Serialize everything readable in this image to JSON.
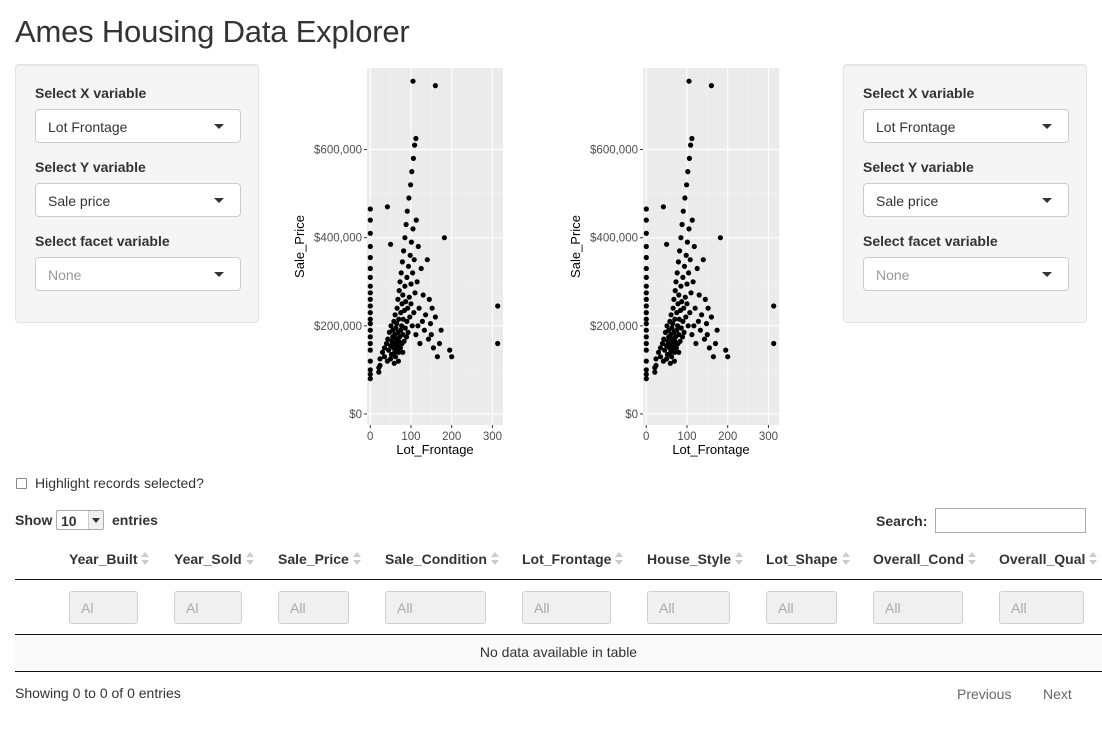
{
  "app": {
    "title": "Ames Housing Data Explorer"
  },
  "controls": [
    {
      "x_label": "Select X variable",
      "x_value": "Lot Frontage",
      "y_label": "Select Y variable",
      "y_value": "Sale price",
      "facet_label": "Select facet variable",
      "facet_value": "None"
    },
    {
      "x_label": "Select X variable",
      "x_value": "Lot Frontage",
      "y_label": "Select Y variable",
      "y_value": "Sale price",
      "facet_label": "Select facet variable",
      "facet_value": "None"
    }
  ],
  "chart_data": [
    {
      "type": "scatter",
      "xlabel": "Lot_Frontage",
      "ylabel": "Sale_Price",
      "xlim": [
        -8,
        326
      ],
      "ylim": [
        -25000,
        785000
      ],
      "x_ticks": [
        0,
        100,
        200,
        300
      ],
      "x_tick_labels": [
        "0",
        "100",
        "200",
        "300"
      ],
      "y_ticks": [
        0,
        200000,
        400000,
        600000
      ],
      "y_tick_labels": [
        "$0",
        "$200,000",
        "$400,000",
        "$600,000"
      ],
      "grid": true,
      "panel_color": "#ebebeb",
      "point_color": "#000000",
      "points": [
        [
          0,
          120000
        ],
        [
          0,
          145000
        ],
        [
          0,
          160000
        ],
        [
          0,
          175000
        ],
        [
          0,
          190000
        ],
        [
          0,
          205000
        ],
        [
          0,
          215000
        ],
        [
          0,
          230000
        ],
        [
          0,
          245000
        ],
        [
          0,
          260000
        ],
        [
          0,
          275000
        ],
        [
          0,
          290000
        ],
        [
          0,
          310000
        ],
        [
          0,
          330000
        ],
        [
          0,
          355000
        ],
        [
          0,
          380000
        ],
        [
          0,
          410000
        ],
        [
          0,
          440000
        ],
        [
          0,
          465000
        ],
        [
          0,
          100000
        ],
        [
          0,
          90000
        ],
        [
          0,
          80000
        ],
        [
          21,
          95000
        ],
        [
          21,
          105000
        ],
        [
          24,
          110000
        ],
        [
          24,
          125000
        ],
        [
          30,
          140000
        ],
        [
          35,
          130000
        ],
        [
          35,
          150000
        ],
        [
          40,
          160000
        ],
        [
          42,
          120000
        ],
        [
          43,
          170000
        ],
        [
          45,
          145000
        ],
        [
          47,
          185000
        ],
        [
          50,
          125000
        ],
        [
          50,
          155000
        ],
        [
          51,
          200000
        ],
        [
          52,
          135000
        ],
        [
          53,
          165000
        ],
        [
          55,
          175000
        ],
        [
          55,
          190000
        ],
        [
          57,
          150000
        ],
        [
          58,
          210000
        ],
        [
          59,
          115000
        ],
        [
          60,
          140000
        ],
        [
          60,
          160000
        ],
        [
          60,
          180000
        ],
        [
          61,
          225000
        ],
        [
          62,
          130000
        ],
        [
          63,
          195000
        ],
        [
          64,
          170000
        ],
        [
          65,
          145000
        ],
        [
          65,
          205000
        ],
        [
          66,
          240000
        ],
        [
          67,
          155000
        ],
        [
          68,
          185000
        ],
        [
          68,
          260000
        ],
        [
          69,
          120000
        ],
        [
          70,
          140000
        ],
        [
          70,
          165000
        ],
        [
          70,
          215000
        ],
        [
          71,
          280000
        ],
        [
          72,
          175000
        ],
        [
          73,
          300000
        ],
        [
          74,
          150000
        ],
        [
          75,
          190000
        ],
        [
          75,
          230000
        ],
        [
          76,
          320000
        ],
        [
          77,
          200000
        ],
        [
          78,
          160000
        ],
        [
          78,
          250000
        ],
        [
          79,
          345000
        ],
        [
          80,
          140000
        ],
        [
          80,
          180000
        ],
        [
          80,
          270000
        ],
        [
          81,
          215000
        ],
        [
          82,
          370000
        ],
        [
          83,
          165000
        ],
        [
          84,
          235000
        ],
        [
          85,
          290000
        ],
        [
          85,
          400000
        ],
        [
          86,
          195000
        ],
        [
          87,
          255000
        ],
        [
          88,
          430000
        ],
        [
          89,
          175000
        ],
        [
          90,
          210000
        ],
        [
          90,
          310000
        ],
        [
          91,
          460000
        ],
        [
          92,
          240000
        ],
        [
          93,
          185000
        ],
        [
          94,
          335000
        ],
        [
          95,
          490000
        ],
        [
          96,
          265000
        ],
        [
          97,
          220000
        ],
        [
          98,
          360000
        ],
        [
          99,
          520000
        ],
        [
          100,
          250000
        ],
        [
          100,
          295000
        ],
        [
          101,
          390000
        ],
        [
          102,
          550000
        ],
        [
          103,
          200000
        ],
        [
          104,
          320000
        ],
        [
          105,
          420000
        ],
        [
          106,
          580000
        ],
        [
          107,
          230000
        ],
        [
          108,
          350000
        ],
        [
          109,
          610000
        ],
        [
          110,
          275000
        ],
        [
          112,
          180000
        ],
        [
          113,
          440000
        ],
        [
          115,
          300000
        ],
        [
          117,
          200000
        ],
        [
          118,
          380000
        ],
        [
          120,
          240000
        ],
        [
          122,
          160000
        ],
        [
          125,
          330000
        ],
        [
          128,
          210000
        ],
        [
          130,
          270000
        ],
        [
          133,
          190000
        ],
        [
          136,
          225000
        ],
        [
          140,
          350000
        ],
        [
          143,
          170000
        ],
        [
          145,
          260000
        ],
        [
          148,
          205000
        ],
        [
          150,
          180000
        ],
        [
          152,
          240000
        ],
        [
          155,
          150000
        ],
        [
          160,
          220000
        ],
        [
          165,
          130000
        ],
        [
          170,
          160000
        ],
        [
          174,
          190000
        ],
        [
          182,
          400000
        ],
        [
          195,
          145000
        ],
        [
          200,
          130000
        ],
        [
          313,
          245000
        ],
        [
          313,
          160000
        ],
        [
          105,
          755000
        ],
        [
          160,
          745000
        ],
        [
          112,
          625000
        ],
        [
          42,
          470000
        ],
        [
          50,
          385000
        ]
      ]
    },
    {
      "type": "scatter",
      "xlabel": "Lot_Frontage",
      "ylabel": "Sale_Price",
      "xlim": [
        -8,
        326
      ],
      "ylim": [
        -25000,
        785000
      ],
      "x_ticks": [
        0,
        100,
        200,
        300
      ],
      "x_tick_labels": [
        "0",
        "100",
        "200",
        "300"
      ],
      "y_ticks": [
        0,
        200000,
        400000,
        600000
      ],
      "y_tick_labels": [
        "$0",
        "$200,000",
        "$400,000",
        "$600,000"
      ],
      "grid": true,
      "panel_color": "#ebebeb",
      "point_color": "#000000",
      "points": [
        [
          0,
          120000
        ],
        [
          0,
          145000
        ],
        [
          0,
          160000
        ],
        [
          0,
          175000
        ],
        [
          0,
          190000
        ],
        [
          0,
          205000
        ],
        [
          0,
          215000
        ],
        [
          0,
          230000
        ],
        [
          0,
          245000
        ],
        [
          0,
          260000
        ],
        [
          0,
          275000
        ],
        [
          0,
          290000
        ],
        [
          0,
          310000
        ],
        [
          0,
          330000
        ],
        [
          0,
          355000
        ],
        [
          0,
          380000
        ],
        [
          0,
          410000
        ],
        [
          0,
          440000
        ],
        [
          0,
          465000
        ],
        [
          0,
          100000
        ],
        [
          0,
          90000
        ],
        [
          0,
          80000
        ],
        [
          21,
          95000
        ],
        [
          21,
          105000
        ],
        [
          24,
          110000
        ],
        [
          24,
          125000
        ],
        [
          30,
          140000
        ],
        [
          35,
          130000
        ],
        [
          35,
          150000
        ],
        [
          40,
          160000
        ],
        [
          42,
          120000
        ],
        [
          43,
          170000
        ],
        [
          45,
          145000
        ],
        [
          47,
          185000
        ],
        [
          50,
          125000
        ],
        [
          50,
          155000
        ],
        [
          51,
          200000
        ],
        [
          52,
          135000
        ],
        [
          53,
          165000
        ],
        [
          55,
          175000
        ],
        [
          55,
          190000
        ],
        [
          57,
          150000
        ],
        [
          58,
          210000
        ],
        [
          59,
          115000
        ],
        [
          60,
          140000
        ],
        [
          60,
          160000
        ],
        [
          60,
          180000
        ],
        [
          61,
          225000
        ],
        [
          62,
          130000
        ],
        [
          63,
          195000
        ],
        [
          64,
          170000
        ],
        [
          65,
          145000
        ],
        [
          65,
          205000
        ],
        [
          66,
          240000
        ],
        [
          67,
          155000
        ],
        [
          68,
          185000
        ],
        [
          68,
          260000
        ],
        [
          69,
          120000
        ],
        [
          70,
          140000
        ],
        [
          70,
          165000
        ],
        [
          70,
          215000
        ],
        [
          71,
          280000
        ],
        [
          72,
          175000
        ],
        [
          73,
          300000
        ],
        [
          74,
          150000
        ],
        [
          75,
          190000
        ],
        [
          75,
          230000
        ],
        [
          76,
          320000
        ],
        [
          77,
          200000
        ],
        [
          78,
          160000
        ],
        [
          78,
          250000
        ],
        [
          79,
          345000
        ],
        [
          80,
          140000
        ],
        [
          80,
          180000
        ],
        [
          80,
          270000
        ],
        [
          81,
          215000
        ],
        [
          82,
          370000
        ],
        [
          83,
          165000
        ],
        [
          84,
          235000
        ],
        [
          85,
          290000
        ],
        [
          85,
          400000
        ],
        [
          86,
          195000
        ],
        [
          87,
          255000
        ],
        [
          88,
          430000
        ],
        [
          89,
          175000
        ],
        [
          90,
          210000
        ],
        [
          90,
          310000
        ],
        [
          91,
          460000
        ],
        [
          92,
          240000
        ],
        [
          93,
          185000
        ],
        [
          94,
          335000
        ],
        [
          95,
          490000
        ],
        [
          96,
          265000
        ],
        [
          97,
          220000
        ],
        [
          98,
          360000
        ],
        [
          99,
          520000
        ],
        [
          100,
          250000
        ],
        [
          100,
          295000
        ],
        [
          101,
          390000
        ],
        [
          102,
          550000
        ],
        [
          103,
          200000
        ],
        [
          104,
          320000
        ],
        [
          105,
          420000
        ],
        [
          106,
          580000
        ],
        [
          107,
          230000
        ],
        [
          108,
          350000
        ],
        [
          109,
          610000
        ],
        [
          110,
          275000
        ],
        [
          112,
          180000
        ],
        [
          113,
          440000
        ],
        [
          115,
          300000
        ],
        [
          117,
          200000
        ],
        [
          118,
          380000
        ],
        [
          120,
          240000
        ],
        [
          122,
          160000
        ],
        [
          125,
          330000
        ],
        [
          128,
          210000
        ],
        [
          130,
          270000
        ],
        [
          133,
          190000
        ],
        [
          136,
          225000
        ],
        [
          140,
          350000
        ],
        [
          143,
          170000
        ],
        [
          145,
          260000
        ],
        [
          148,
          205000
        ],
        [
          150,
          180000
        ],
        [
          152,
          240000
        ],
        [
          155,
          150000
        ],
        [
          160,
          220000
        ],
        [
          165,
          130000
        ],
        [
          170,
          160000
        ],
        [
          174,
          190000
        ],
        [
          182,
          400000
        ],
        [
          195,
          145000
        ],
        [
          200,
          130000
        ],
        [
          313,
          245000
        ],
        [
          313,
          160000
        ],
        [
          105,
          755000
        ],
        [
          160,
          745000
        ],
        [
          112,
          625000
        ],
        [
          42,
          470000
        ],
        [
          50,
          385000
        ]
      ]
    }
  ],
  "highlight": {
    "label": "Highlight records selected?",
    "checked": false
  },
  "table": {
    "length_prefix": "Show",
    "length_value": "10",
    "length_suffix": "entries",
    "search_label": "Search:",
    "search_value": "",
    "columns": [
      "Year_Built",
      "Year_Sold",
      "Sale_Price",
      "Sale_Condition",
      "Lot_Frontage",
      "House_Style",
      "Lot_Shape",
      "Overall_Cond",
      "Overall_Qual"
    ],
    "filter_placeholders": [
      "Al",
      "Al",
      "All",
      "All",
      "All",
      "All",
      "All",
      "All",
      "All"
    ],
    "empty_message": "No data available in table",
    "info": "Showing 0 to 0 of 0 entries",
    "prev": "Previous",
    "next": "Next"
  }
}
